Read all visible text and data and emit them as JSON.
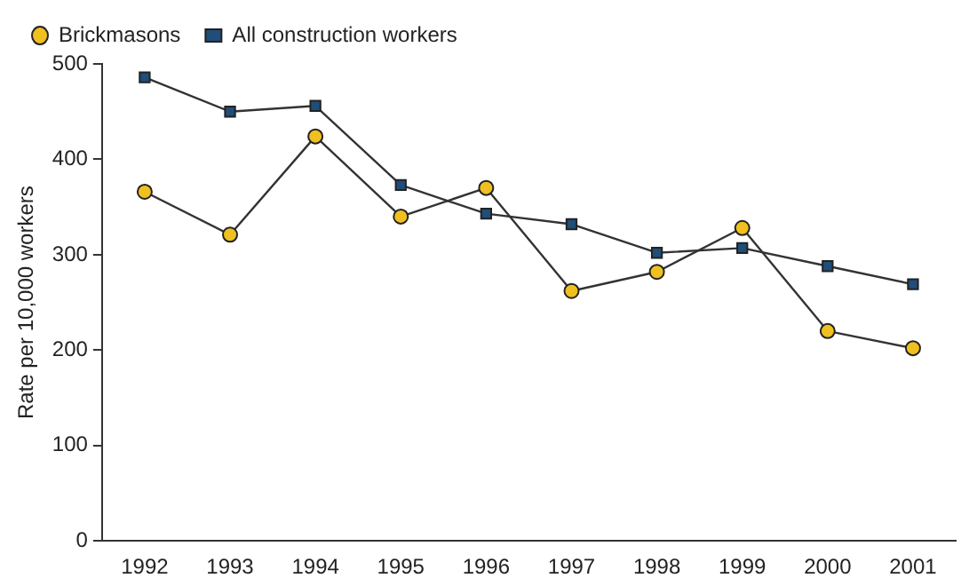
{
  "chart_data": {
    "type": "line",
    "ylabel": "Rate per 10,000 workers",
    "categories": [
      "1992",
      "1993",
      "1994",
      "1995",
      "1996",
      "1997",
      "1998",
      "1999",
      "2000",
      "2001"
    ],
    "series": [
      {
        "name": "Brickmasons",
        "color": "#f0c020",
        "marker": "circle",
        "values": [
          366,
          321,
          424,
          340,
          370,
          262,
          282,
          328,
          220,
          202
        ]
      },
      {
        "name": "All construction workers",
        "color": "#1f4e79",
        "marker": "square",
        "values": [
          486,
          450,
          456,
          373,
          343,
          332,
          302,
          307,
          288,
          269
        ]
      }
    ],
    "ylim": [
      0,
      500
    ],
    "yticks": [
      0,
      100,
      200,
      300,
      400,
      500
    ],
    "grid": false,
    "legend": "top left"
  }
}
